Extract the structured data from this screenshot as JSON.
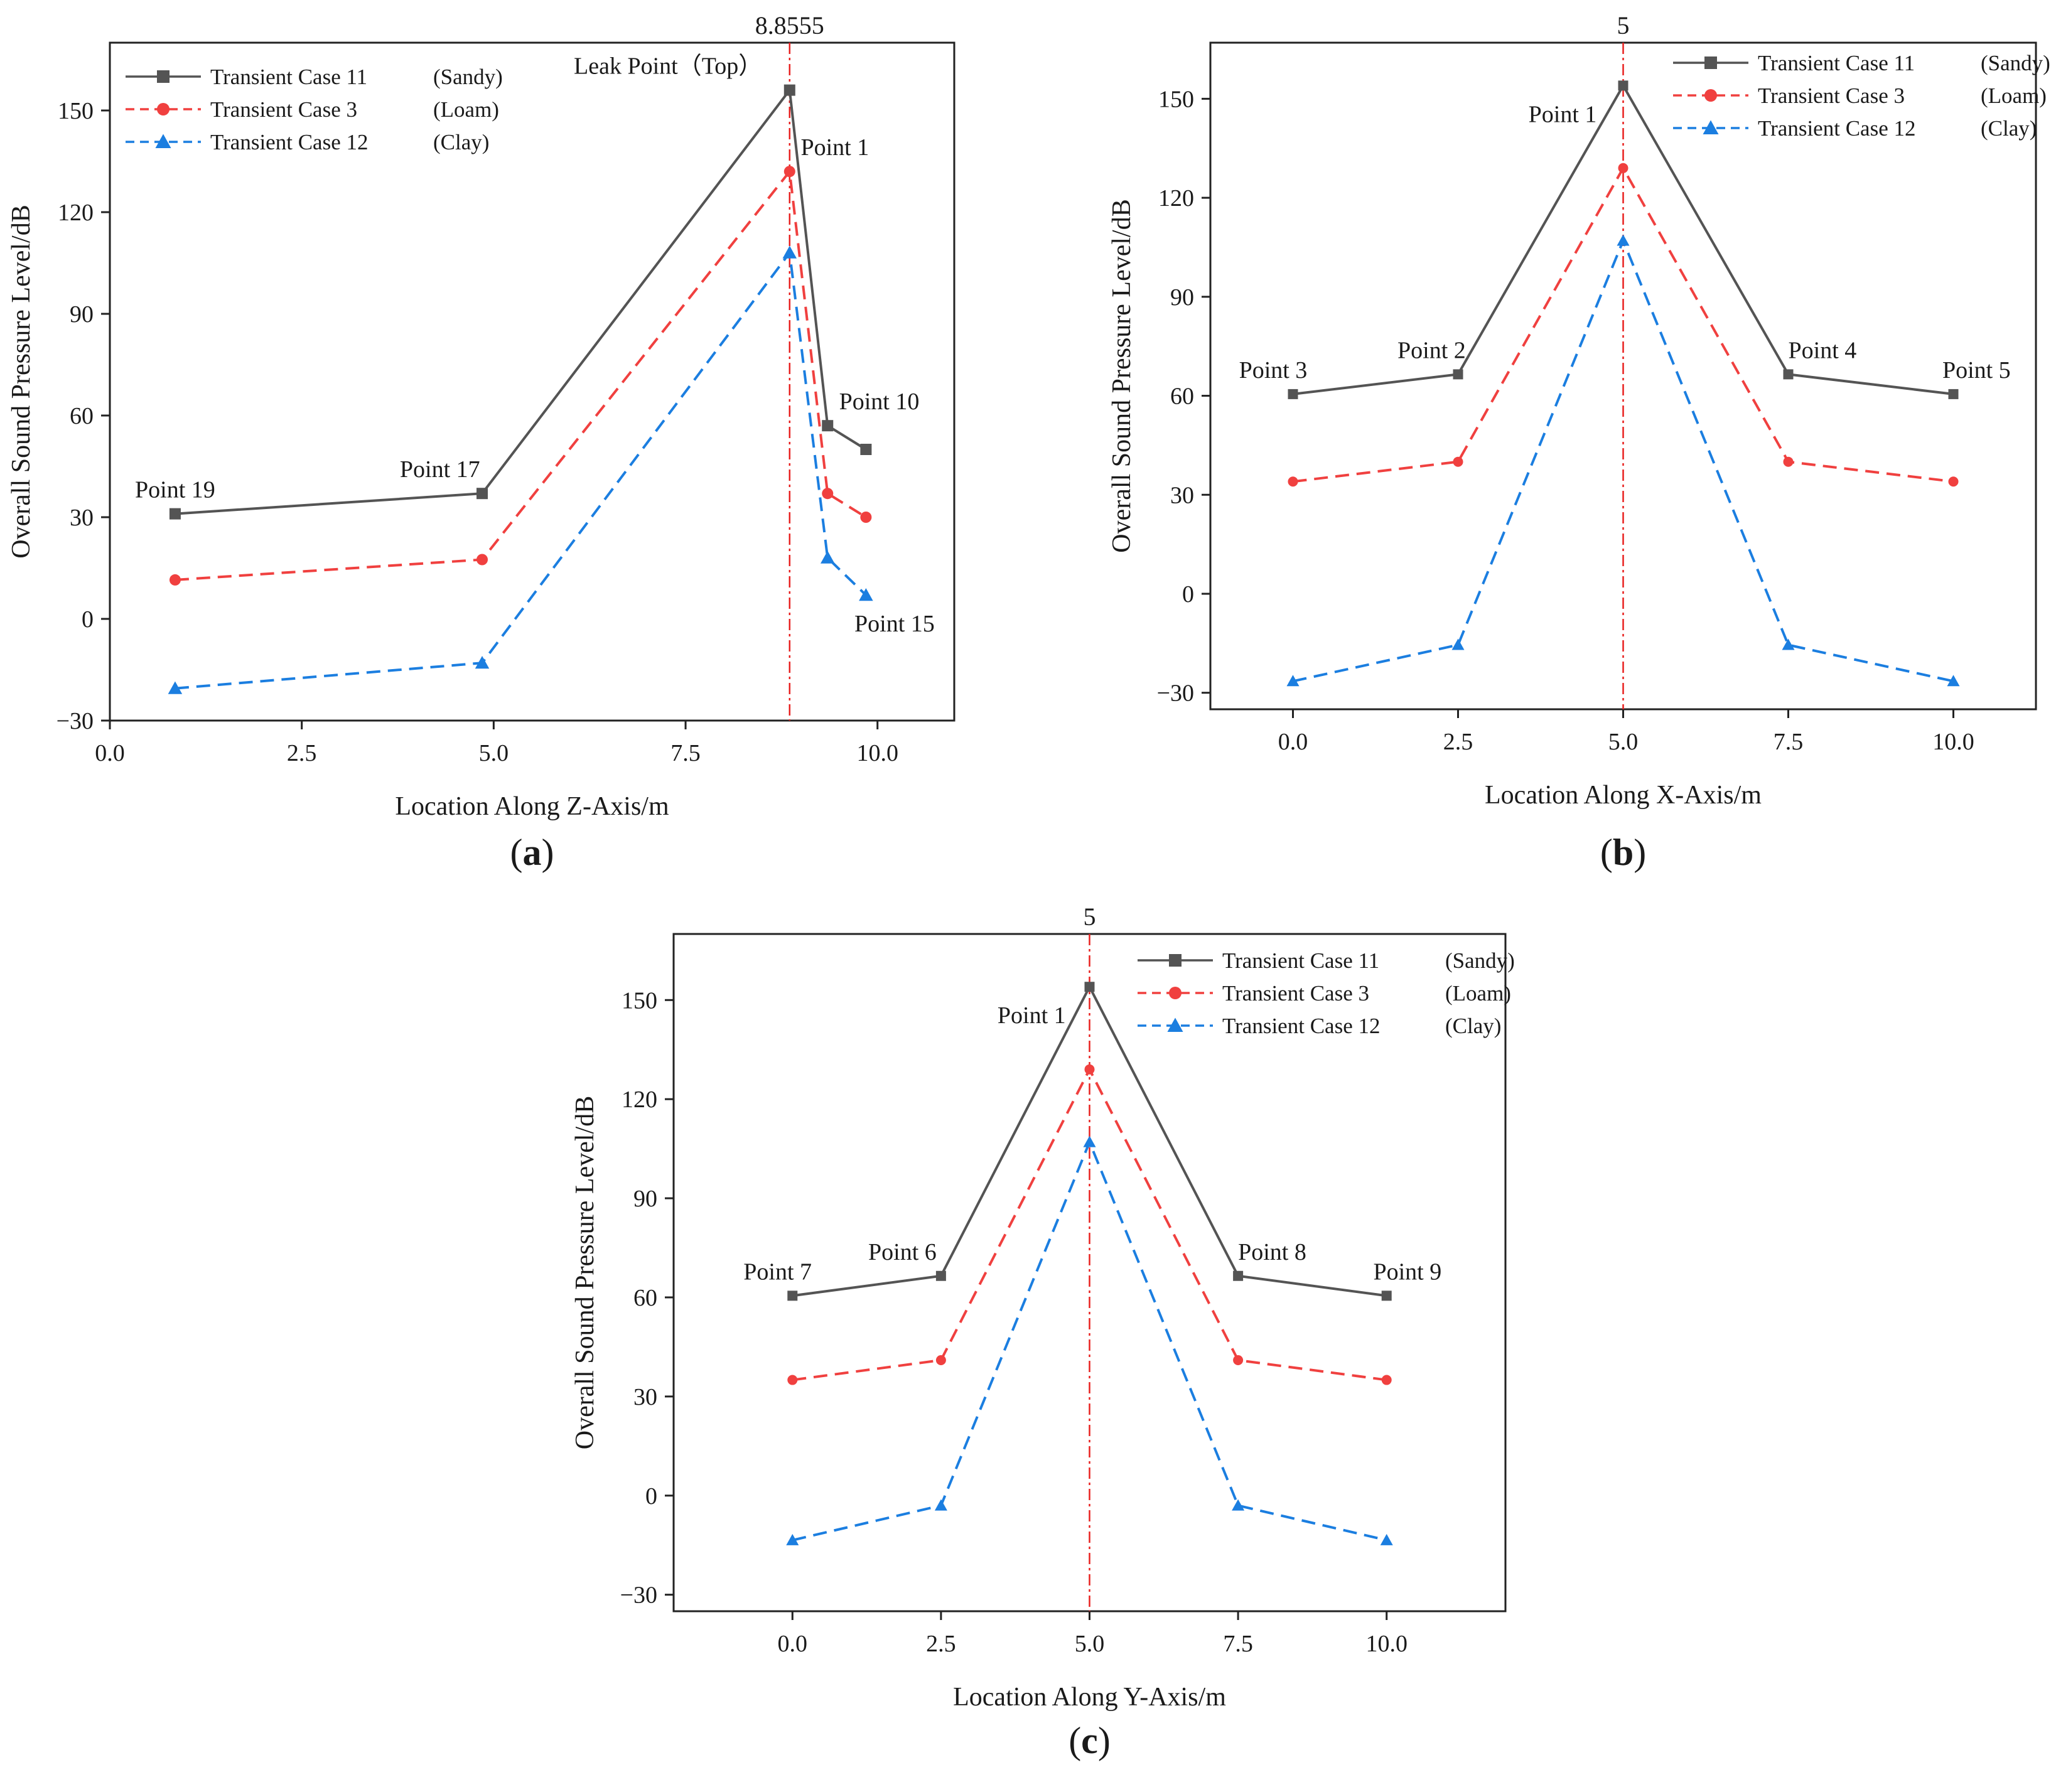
{
  "chart_data": [
    {
      "type": "line",
      "panel_label": {
        "open": "(",
        "letter": "a",
        "close": ")"
      },
      "xlabel": "Location Along Z-Axis/m",
      "ylabel": "Overall Sound Pressure Level/dB",
      "xlim": [
        0.0,
        11.0
      ],
      "ylim": [
        -30,
        170
      ],
      "xticks": [
        0.0,
        2.5,
        5.0,
        7.5,
        10.0
      ],
      "xtick_labels": [
        "0.0",
        "2.5",
        "5.0",
        "7.5",
        "10.0"
      ],
      "yticks": [
        -30,
        0,
        30,
        60,
        90,
        120,
        150
      ],
      "ytick_labels": [
        "−30",
        "0",
        "30",
        "60",
        "90",
        "120",
        "150"
      ],
      "reference_line": {
        "x": 8.8555,
        "label": "8.8555"
      },
      "legend_position": "top-left",
      "series": [
        {
          "name": "Transient Case 11",
          "soil": "(Sandy)",
          "color": "#545454",
          "dash": "solid",
          "marker": "square",
          "x": [
            0.85,
            4.85,
            8.8555,
            9.35,
            9.85
          ],
          "y": [
            31,
            37,
            156,
            57,
            50
          ]
        },
        {
          "name": "Transient Case 3",
          "soil": "(Loam)",
          "color": "#f0403f",
          "dash": "dashed",
          "marker": "circle",
          "x": [
            0.85,
            4.85,
            8.8555,
            9.35,
            9.85
          ],
          "y": [
            11.5,
            17.5,
            132,
            37,
            30
          ]
        },
        {
          "name": "Transient Case 12",
          "soil": "(Clay)",
          "color": "#1b7ee0",
          "dash": "dashed",
          "marker": "triangle",
          "x": [
            0.85,
            4.85,
            8.8555,
            9.35,
            9.85
          ],
          "y": [
            -20.5,
            -13,
            108,
            18,
            7
          ]
        }
      ],
      "annotations": [
        {
          "text": "Point 19",
          "x": 0.85,
          "anchor_y": 31,
          "align": "middle",
          "pos": "above"
        },
        {
          "text": "Point 17",
          "x": 4.3,
          "anchor_y": 37,
          "align": "middle",
          "pos": "above"
        },
        {
          "text": "Leak Point（Top）",
          "x": 8.5,
          "anchor_y": 156,
          "align": "end",
          "pos": "above"
        },
        {
          "text": "Point 1",
          "x": 9.0,
          "anchor_y": 132,
          "align": "start",
          "pos": "above"
        },
        {
          "text": "Point 10",
          "x": 9.5,
          "anchor_y": 57,
          "align": "start",
          "pos": "above"
        },
        {
          "text": "Point 15",
          "x": 9.7,
          "anchor_y": 7,
          "align": "start",
          "pos": "below"
        }
      ]
    },
    {
      "type": "line",
      "panel_label": {
        "open": "(",
        "letter": "b",
        "close": ")"
      },
      "xlabel": "Location Along X-Axis/m",
      "ylabel": "Overall Sound Pressure Level/dB",
      "xlim": [
        -1.25,
        11.25
      ],
      "ylim": [
        -35,
        167
      ],
      "xticks": [
        0.0,
        2.5,
        5.0,
        7.5,
        10.0
      ],
      "xtick_labels": [
        "0.0",
        "2.5",
        "5.0",
        "7.5",
        "10.0"
      ],
      "yticks": [
        -30,
        0,
        30,
        60,
        90,
        120,
        150
      ],
      "ytick_labels": [
        "−30",
        "0",
        "30",
        "60",
        "90",
        "120",
        "150"
      ],
      "reference_line": {
        "x": 5,
        "label": "5"
      },
      "legend_position": "top-right",
      "series": [
        {
          "name": "Transient Case 11",
          "soil": "(Sandy)",
          "color": "#545454",
          "dash": "solid",
          "marker": "square",
          "x": [
            0,
            2.5,
            5,
            7.5,
            10
          ],
          "y": [
            60.5,
            66.5,
            154,
            66.5,
            60.5
          ]
        },
        {
          "name": "Transient Case 3",
          "soil": "(Loam)",
          "color": "#f0403f",
          "dash": "dashed",
          "marker": "circle",
          "x": [
            0,
            2.5,
            5,
            7.5,
            10
          ],
          "y": [
            34,
            40,
            129,
            40,
            34
          ]
        },
        {
          "name": "Transient Case 12",
          "soil": "(Clay)",
          "color": "#1b7ee0",
          "dash": "dashed",
          "marker": "triangle",
          "x": [
            0,
            2.5,
            5,
            7.5,
            10
          ],
          "y": [
            -26.5,
            -15.5,
            107,
            -15.5,
            -26.5
          ]
        }
      ],
      "annotations": [
        {
          "text": "Point 3",
          "x": -0.3,
          "anchor_y": 60.5,
          "align": "middle",
          "pos": "above"
        },
        {
          "text": "Point 2",
          "x": 2.1,
          "anchor_y": 66.5,
          "align": "middle",
          "pos": "above"
        },
        {
          "text": "Point 1",
          "x": 4.6,
          "anchor_y": 154,
          "align": "end",
          "pos": "below"
        },
        {
          "text": "Point 4",
          "x": 7.5,
          "anchor_y": 66.5,
          "align": "start",
          "pos": "above"
        },
        {
          "text": "Point 5",
          "x": 10.35,
          "anchor_y": 60.5,
          "align": "middle",
          "pos": "above"
        }
      ]
    },
    {
      "type": "line",
      "panel_label": {
        "open": "(",
        "letter": "c",
        "close": ")"
      },
      "xlabel": "Location Along Y-Axis/m",
      "ylabel": "Overall Sound Pressure Level/dB",
      "xlim": [
        -2.0,
        12.0
      ],
      "ylim": [
        -35,
        170
      ],
      "xticks": [
        0.0,
        2.5,
        5.0,
        7.5,
        10.0
      ],
      "xtick_labels": [
        "0.0",
        "2.5",
        "5.0",
        "7.5",
        "10.0"
      ],
      "yticks": [
        -30,
        0,
        30,
        60,
        90,
        120,
        150
      ],
      "ytick_labels": [
        "−30",
        "0",
        "30",
        "60",
        "90",
        "120",
        "150"
      ],
      "reference_line": {
        "x": 5,
        "label": "5"
      },
      "legend_position": "top-right",
      "series": [
        {
          "name": "Transient Case 11",
          "soil": "(Sandy)",
          "color": "#545454",
          "dash": "solid",
          "marker": "square",
          "x": [
            0,
            2.5,
            5,
            7.5,
            10
          ],
          "y": [
            60.5,
            66.5,
            154,
            66.5,
            60.5
          ]
        },
        {
          "name": "Transient Case 3",
          "soil": "(Loam)",
          "color": "#f0403f",
          "dash": "dashed",
          "marker": "circle",
          "x": [
            0,
            2.5,
            5,
            7.5,
            10
          ],
          "y": [
            35,
            41,
            129,
            41,
            35
          ]
        },
        {
          "name": "Transient Case 12",
          "soil": "(Clay)",
          "color": "#1b7ee0",
          "dash": "dashed",
          "marker": "triangle",
          "x": [
            0,
            2.5,
            5,
            7.5,
            10
          ],
          "y": [
            -13.5,
            -3,
            107,
            -3,
            -13.5
          ]
        }
      ],
      "annotations": [
        {
          "text": "Point 7",
          "x": -0.25,
          "anchor_y": 60.5,
          "align": "middle",
          "pos": "above"
        },
        {
          "text": "Point 6",
          "x": 1.85,
          "anchor_y": 66.5,
          "align": "middle",
          "pos": "above"
        },
        {
          "text": "Point 1",
          "x": 4.6,
          "anchor_y": 154,
          "align": "end",
          "pos": "below"
        },
        {
          "text": "Point 8",
          "x": 7.5,
          "anchor_y": 66.5,
          "align": "start",
          "pos": "above"
        },
        {
          "text": "Point 9",
          "x": 10.35,
          "anchor_y": 60.5,
          "align": "middle",
          "pos": "above"
        }
      ]
    }
  ]
}
